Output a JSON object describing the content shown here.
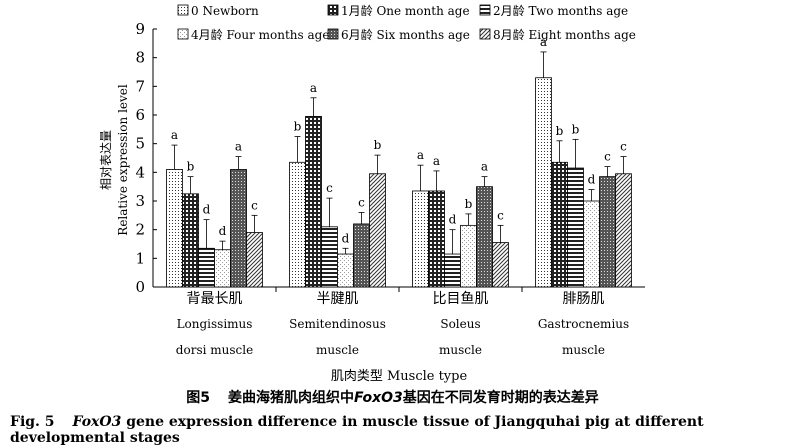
{
  "chart_data": {
    "type": "bar",
    "title": "",
    "ylabel_cn": "相对表达量",
    "ylabel_en": "Relative expression level",
    "xlabel": "肌肉类型 Muscle type",
    "ylim": [
      0,
      9
    ],
    "yticks": [
      0,
      1,
      2,
      3,
      4,
      5,
      6,
      7,
      8,
      9
    ],
    "grid": false,
    "legend_position": "top",
    "categories": [
      {
        "cn": "背最长肌",
        "en1": "Longissimus",
        "en2": "dorsi muscle"
      },
      {
        "cn": "半腱肌",
        "en1": "Semitendinosus",
        "en2": "muscle"
      },
      {
        "cn": "比目鱼肌",
        "en1": "Soleus",
        "en2": "muscle"
      },
      {
        "cn": "腓肠肌",
        "en1": "Gastrocnemius",
        "en2": "muscle"
      }
    ],
    "series": [
      {
        "name": "0 Newborn",
        "pattern": "dots",
        "values": [
          4.1,
          4.35,
          3.35,
          7.3
        ],
        "errors": [
          0.85,
          0.9,
          0.9,
          0.9
        ],
        "letters": [
          "a",
          "b",
          "a",
          "a"
        ]
      },
      {
        "name": "1月龄 One month age",
        "pattern": "grid",
        "values": [
          3.25,
          5.95,
          3.35,
          4.35
        ],
        "errors": [
          0.6,
          0.65,
          0.7,
          0.75
        ],
        "letters": [
          "b",
          "a",
          "a",
          "b"
        ]
      },
      {
        "name": "2月龄 Two months age",
        "pattern": "hlines",
        "values": [
          1.35,
          2.1,
          1.15,
          4.15
        ],
        "errors": [
          1.0,
          1.0,
          0.85,
          1.0
        ],
        "letters": [
          "d",
          "c",
          "d",
          "b"
        ]
      },
      {
        "name": "4月龄 Four months age",
        "pattern": "fine",
        "values": [
          1.3,
          1.15,
          2.15,
          3.0
        ],
        "errors": [
          0.3,
          0.2,
          0.4,
          0.4
        ],
        "letters": [
          "d",
          "d",
          "b",
          "d"
        ]
      },
      {
        "name": "6月龄 Six months age",
        "pattern": "cross",
        "values": [
          4.1,
          2.2,
          3.5,
          3.85
        ],
        "errors": [
          0.45,
          0.4,
          0.35,
          0.35
        ],
        "letters": [
          "a",
          "c",
          "a",
          "c"
        ]
      },
      {
        "name": "8月龄 Eight months age",
        "pattern": "diag",
        "values": [
          1.9,
          3.95,
          1.55,
          3.95
        ],
        "errors": [
          0.6,
          0.65,
          0.6,
          0.6
        ],
        "letters": [
          "c",
          "b",
          "c",
          "c"
        ]
      }
    ]
  },
  "caption": {
    "cn_num": "图5",
    "cn_pre": "姜曲海猪肌肉组织中",
    "cn_gene": "FoxO3",
    "cn_post": "基因在不同发育时期的表达差异",
    "en_num": "Fig. 5",
    "en_gene": "FoxO3",
    "en_post": " gene expression difference in muscle tissue of Jiangquhai pig at different developmental stages"
  }
}
